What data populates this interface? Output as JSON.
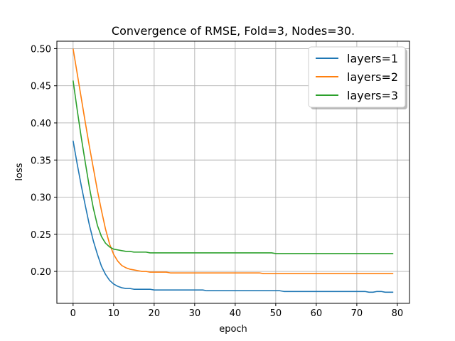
{
  "chart_data": {
    "type": "line",
    "title": "Convergence of RMSE, Fold=3, Nodes=30.",
    "xlabel": "epoch",
    "ylabel": "loss",
    "xlim": [
      -4,
      83
    ],
    "ylim": [
      0.157,
      0.51
    ],
    "xticks": [
      0,
      10,
      20,
      30,
      40,
      50,
      60,
      70,
      80
    ],
    "yticks": [
      0.2,
      0.25,
      0.3,
      0.35,
      0.4,
      0.45,
      0.5
    ],
    "grid": true,
    "legend_position": "top-right",
    "series": [
      {
        "name": "layers=1",
        "color": "#1f77b4",
        "values": [
          0.376,
          0.345,
          0.316,
          0.289,
          0.263,
          0.241,
          0.223,
          0.207,
          0.196,
          0.188,
          0.183,
          0.18,
          0.178,
          0.177,
          0.177,
          0.176,
          0.176,
          0.176,
          0.176,
          0.176,
          0.175,
          0.175,
          0.175,
          0.175,
          0.175,
          0.175,
          0.175,
          0.175,
          0.175,
          0.175,
          0.175,
          0.175,
          0.175,
          0.174,
          0.174,
          0.174,
          0.174,
          0.174,
          0.174,
          0.174,
          0.174,
          0.174,
          0.174,
          0.174,
          0.174,
          0.174,
          0.174,
          0.174,
          0.174,
          0.174,
          0.174,
          0.174,
          0.173,
          0.173,
          0.173,
          0.173,
          0.173,
          0.173,
          0.173,
          0.173,
          0.173,
          0.173,
          0.173,
          0.173,
          0.173,
          0.173,
          0.173,
          0.173,
          0.173,
          0.173,
          0.173,
          0.173,
          0.173,
          0.172,
          0.172,
          0.173,
          0.173,
          0.172,
          0.172,
          0.172
        ]
      },
      {
        "name": "layers=2",
        "color": "#ff7f0e",
        "values": [
          0.5,
          0.467,
          0.434,
          0.401,
          0.369,
          0.339,
          0.309,
          0.282,
          0.257,
          0.237,
          0.223,
          0.214,
          0.208,
          0.205,
          0.203,
          0.202,
          0.201,
          0.2,
          0.2,
          0.199,
          0.199,
          0.199,
          0.199,
          0.199,
          0.198,
          0.198,
          0.198,
          0.198,
          0.198,
          0.198,
          0.198,
          0.198,
          0.198,
          0.198,
          0.198,
          0.198,
          0.198,
          0.198,
          0.198,
          0.198,
          0.198,
          0.198,
          0.198,
          0.198,
          0.198,
          0.198,
          0.198,
          0.197,
          0.197,
          0.197,
          0.197,
          0.197,
          0.197,
          0.197,
          0.197,
          0.197,
          0.197,
          0.197,
          0.197,
          0.197,
          0.197,
          0.197,
          0.197,
          0.197,
          0.197,
          0.197,
          0.197,
          0.197,
          0.197,
          0.197,
          0.197,
          0.197,
          0.197,
          0.197,
          0.197,
          0.197,
          0.197,
          0.197,
          0.197,
          0.197
        ]
      },
      {
        "name": "layers=3",
        "color": "#2ca02c",
        "values": [
          0.457,
          0.418,
          0.381,
          0.347,
          0.314,
          0.285,
          0.262,
          0.247,
          0.238,
          0.233,
          0.23,
          0.229,
          0.228,
          0.227,
          0.227,
          0.226,
          0.226,
          0.226,
          0.226,
          0.225,
          0.225,
          0.225,
          0.225,
          0.225,
          0.225,
          0.225,
          0.225,
          0.225,
          0.225,
          0.225,
          0.225,
          0.225,
          0.225,
          0.225,
          0.225,
          0.225,
          0.225,
          0.225,
          0.225,
          0.225,
          0.225,
          0.225,
          0.225,
          0.225,
          0.225,
          0.225,
          0.225,
          0.225,
          0.225,
          0.225,
          0.224,
          0.224,
          0.224,
          0.224,
          0.224,
          0.224,
          0.224,
          0.224,
          0.224,
          0.224,
          0.224,
          0.224,
          0.224,
          0.224,
          0.224,
          0.224,
          0.224,
          0.224,
          0.224,
          0.224,
          0.224,
          0.224,
          0.224,
          0.224,
          0.224,
          0.224,
          0.224,
          0.224,
          0.224,
          0.224
        ]
      }
    ]
  }
}
